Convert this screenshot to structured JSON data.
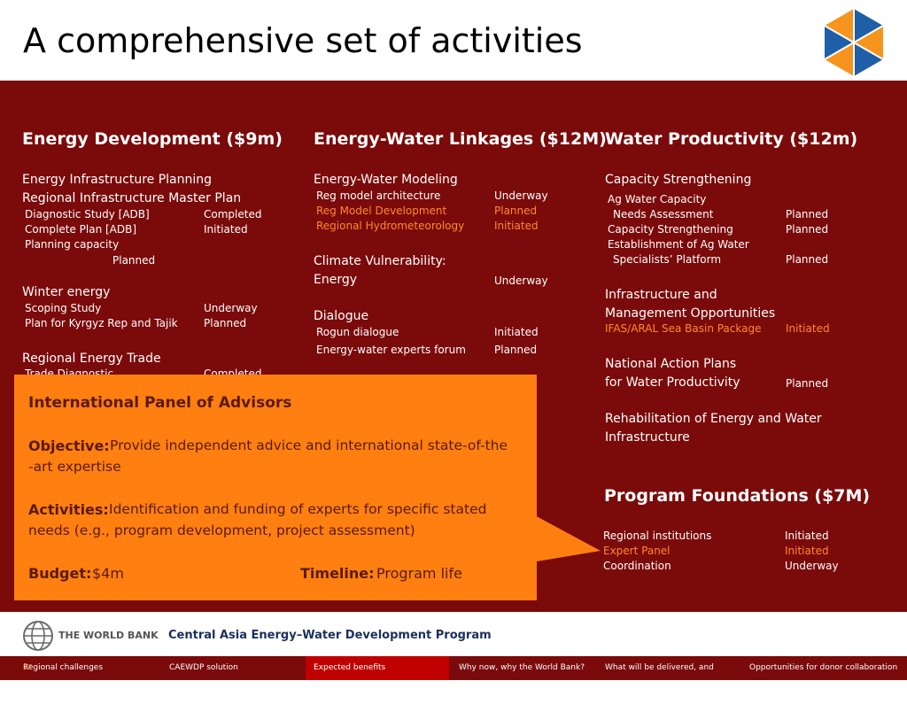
{
  "title": "A comprehensive set of activities",
  "col1": {
    "heading": "Energy Development   ($9m)",
    "s1": "Energy Infrastructure Planning",
    "s2": "Regional Infrastructure Master Plan",
    "i1": "Diagnostic Study [ADB]",
    "i1s": "Completed",
    "i2": "Complete Plan [ADB]",
    "i2s": "Initiated",
    "i3": "Planning capacity",
    "i3s": "Planned",
    "s3": "Winter energy",
    "i4": "Scoping Study",
    "i4s": "Underway",
    "i5": "Plan for Kyrgyz Rep and Tajik",
    "i5s": "Planned",
    "s4": "Regional Energy Trade",
    "i6": "Trade Diagnostic",
    "i6s": "Completed"
  },
  "col2": {
    "heading": "Energy-Water Linkages ($12M)",
    "s1": "Energy-Water Modeling",
    "i1": "Reg model architecture",
    "i1s": "Underway",
    "i2": "Reg Model Development",
    "i2s": "Planned",
    "i3": "Regional Hydrometeorology",
    "i3s": "Initiated",
    "s2a": "Climate Vulnerability:",
    "s2b": "Energy",
    "s2s": "Underway",
    "s3": "Dialogue",
    "i4": "Rogun dialogue",
    "i4s": "Initiated",
    "i5": "Energy-water experts forum",
    "i5s": "Planned"
  },
  "col3": {
    "heading": "Water Productivity   ($12m)",
    "s1": "Capacity Strengthening",
    "i1": "Ag Water Capacity",
    "i2": "Needs Assessment",
    "i2s": "Planned",
    "i3": "Capacity Strengthening",
    "i3s": "Planned",
    "i4": "Establishment of Ag Water",
    "i5": "Specialists’ Platform",
    "i5s": "Planned",
    "s2a": "Infrastructure and",
    "s2b": "Management Opportunities",
    "i6": "IFAS/ARAL Sea Basin Package",
    "i6s": "Initiated",
    "s3a": "National Action Plans",
    "s3b": "for Water Productivity",
    "s3s": "Planned",
    "s4a": "Rehabilitation of Energy and Water",
    "s4b": "Infrastructure"
  },
  "foundations": {
    "heading": "Program Foundations  ($7M)",
    "i1": "Regional institutions",
    "i1s": "Initiated",
    "i2": "Expert Panel",
    "i2s": "Initiated",
    "i3": "Coordination",
    "i3s": "Underway"
  },
  "callout": {
    "title": "International Panel of Advisors",
    "obj_label": "Objective:",
    "obj_text1": "Provide independent advice and international state-of-the",
    "obj_text2": "-art expertise",
    "act_label": "Activities:",
    "act_text1": "Identification and funding of experts for specific stated",
    "act_text2": "needs (e.g., program development, project assessment)",
    "budget_label": "Budget:",
    "budget_value": "$4m",
    "timeline_label": "Timeline:",
    "timeline_value": "Program life"
  },
  "footer": {
    "logo_text": "THE WORLD BANK",
    "program": "Central Asia Energy–Water Development Program"
  },
  "nav": {
    "page_number": "17",
    "items": [
      "Regional challenges",
      "CAEWDP solution",
      "Expected benefits",
      "Why now, why the World Bank?",
      "What will be delivered, and when?",
      "Opportunities for donor collaboration"
    ]
  },
  "colors": {
    "panel": "#7b0a0a",
    "callout": "#ff7f11",
    "highlight": "#ff8a2b",
    "nav_active": "#c00000",
    "logo_blue": "#1f5fa8",
    "logo_orange": "#f7941d"
  }
}
